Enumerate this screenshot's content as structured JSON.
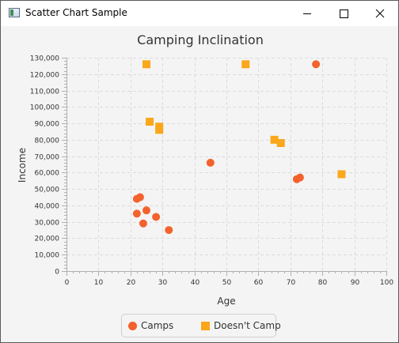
{
  "window": {
    "title": "Scatter Chart Sample"
  },
  "chart_data": {
    "type": "scatter",
    "title": "Camping Inclination",
    "xlabel": "Age",
    "ylabel": "Income",
    "xlim": [
      0,
      100
    ],
    "ylim": [
      0,
      130000
    ],
    "x_major_ticks": [
      0,
      10,
      20,
      30,
      40,
      50,
      60,
      70,
      80,
      90,
      100
    ],
    "x_tick_labels": [
      "0",
      "10",
      "20",
      "30",
      "40",
      "50",
      "60",
      "70",
      "80",
      "90",
      "100"
    ],
    "y_major_ticks": [
      0,
      10000,
      20000,
      30000,
      40000,
      50000,
      60000,
      70000,
      80000,
      90000,
      100000,
      110000,
      120000,
      130000
    ],
    "y_tick_labels": [
      "0",
      "10,000",
      "20,000",
      "30,000",
      "40,000",
      "50,000",
      "60,000",
      "70,000",
      "80,000",
      "90,000",
      "100,000",
      "110,000",
      "120,000",
      "130,000"
    ],
    "grid": true,
    "legend_position": "bottom",
    "series": [
      {
        "name": "Camps",
        "marker": "circle",
        "color": "#f3622d",
        "points": [
          {
            "x": 22,
            "y": 44000
          },
          {
            "x": 23,
            "y": 45000
          },
          {
            "x": 22,
            "y": 35000
          },
          {
            "x": 25,
            "y": 37000
          },
          {
            "x": 24,
            "y": 29000
          },
          {
            "x": 28,
            "y": 33000
          },
          {
            "x": 32,
            "y": 25000
          },
          {
            "x": 45,
            "y": 66000
          },
          {
            "x": 72,
            "y": 56000
          },
          {
            "x": 73,
            "y": 57000
          },
          {
            "x": 78,
            "y": 126000
          }
        ]
      },
      {
        "name": "Doesn't Camp",
        "marker": "square",
        "color": "#fba71b",
        "points": [
          {
            "x": 25,
            "y": 126000
          },
          {
            "x": 56,
            "y": 126000
          },
          {
            "x": 26,
            "y": 91000
          },
          {
            "x": 29,
            "y": 88000
          },
          {
            "x": 29,
            "y": 86000
          },
          {
            "x": 65,
            "y": 80000
          },
          {
            "x": 67,
            "y": 78000
          },
          {
            "x": 86,
            "y": 59000
          }
        ]
      }
    ]
  }
}
